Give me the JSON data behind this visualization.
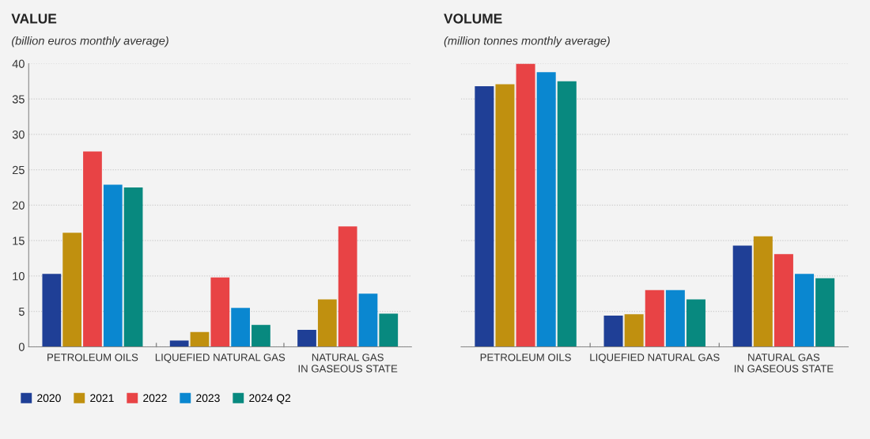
{
  "chart_data": [
    {
      "type": "bar",
      "title": "VALUE",
      "subtitle": "(billion euros monthly average)",
      "categories": [
        "PETROLEUM OILS",
        "LIQUEFIED NATURAL GAS",
        "NATURAL GAS\nIN GASEOUS STATE"
      ],
      "series": [
        {
          "name": "2020",
          "color": "#1f3f96",
          "values": [
            10.3,
            0.9,
            2.4
          ]
        },
        {
          "name": "2021",
          "color": "#c0900f",
          "values": [
            16.1,
            2.1,
            6.7
          ]
        },
        {
          "name": "2022",
          "color": "#e84345",
          "values": [
            27.6,
            9.8,
            17.0
          ]
        },
        {
          "name": "2023",
          "color": "#0a87d0",
          "values": [
            22.9,
            5.5,
            7.5
          ]
        },
        {
          "name": "2024 Q2",
          "color": "#08897f",
          "values": [
            22.5,
            3.1,
            4.7
          ]
        }
      ],
      "ylim": [
        0,
        40
      ],
      "yticks": [
        0,
        5,
        10,
        15,
        20,
        25,
        30,
        35,
        40
      ],
      "grid": "y",
      "legend": "bottom"
    },
    {
      "type": "bar",
      "title": "VOLUME",
      "subtitle": "(million tonnes monthly average)",
      "categories": [
        "PETROLEUM OILS",
        "LIQUEFIED NATURAL GAS",
        "NATURAL GAS\nIN GASEOUS STATE"
      ],
      "series": [
        {
          "color": "#1f3f96",
          "values": [
            36.8,
            4.4,
            14.3
          ]
        },
        {
          "color": "#c0900f",
          "values": [
            37.1,
            4.6,
            15.6
          ]
        },
        {
          "color": "#e84345",
          "values": [
            40.0,
            8.0,
            13.1
          ]
        },
        {
          "color": "#0a87d0",
          "values": [
            38.8,
            8.0,
            10.3
          ]
        },
        {
          "color": "#08897f",
          "values": [
            37.5,
            6.7,
            9.7
          ]
        }
      ],
      "ylim": [
        0,
        40
      ],
      "yticks": [
        0,
        5,
        10,
        15,
        20,
        25,
        30,
        35,
        40
      ],
      "grid": "y",
      "tick_labels": "x"
    }
  ]
}
